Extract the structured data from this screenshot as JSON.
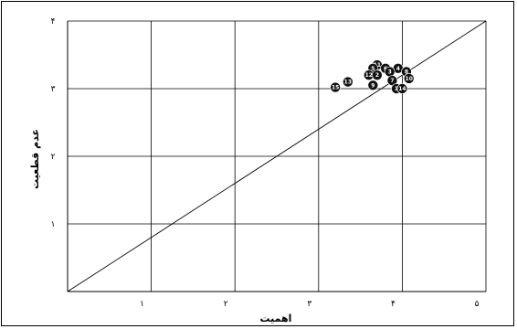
{
  "chart_data": {
    "type": "scatter",
    "title": "",
    "xlabel": "اهمیت",
    "ylabel": "عدم قطعیت",
    "xlim": [
      0,
      5
    ],
    "ylim": [
      0,
      4
    ],
    "x_ticks": [
      "۱",
      "۲",
      "۳",
      "۴",
      "۵"
    ],
    "y_ticks": [
      "۱",
      "۲",
      "۳",
      "۴"
    ],
    "grid": true,
    "reference_line": {
      "from": [
        0,
        0
      ],
      "to": [
        5,
        4
      ]
    },
    "points": [
      {
        "label": "11",
        "x": 3.7,
        "y": 3.35
      },
      {
        "label": "4",
        "x": 3.95,
        "y": 3.3
      },
      {
        "label": "5",
        "x": 3.65,
        "y": 3.3
      },
      {
        "label": "6",
        "x": 3.8,
        "y": 3.3
      },
      {
        "label": "8",
        "x": 4.05,
        "y": 3.25
      },
      {
        "label": "3",
        "x": 3.85,
        "y": 3.25
      },
      {
        "label": "12",
        "x": 3.6,
        "y": 3.2
      },
      {
        "label": "2",
        "x": 3.7,
        "y": 3.2
      },
      {
        "label": "7",
        "x": 3.88,
        "y": 3.12
      },
      {
        "label": "10",
        "x": 4.08,
        "y": 3.15
      },
      {
        "label": "13",
        "x": 3.35,
        "y": 3.1
      },
      {
        "label": "9",
        "x": 3.65,
        "y": 3.05
      },
      {
        "label": "1",
        "x": 3.93,
        "y": 3.0
      },
      {
        "label": "14",
        "x": 4.0,
        "y": 3.0
      },
      {
        "label": "15",
        "x": 3.2,
        "y": 3.02
      }
    ]
  }
}
